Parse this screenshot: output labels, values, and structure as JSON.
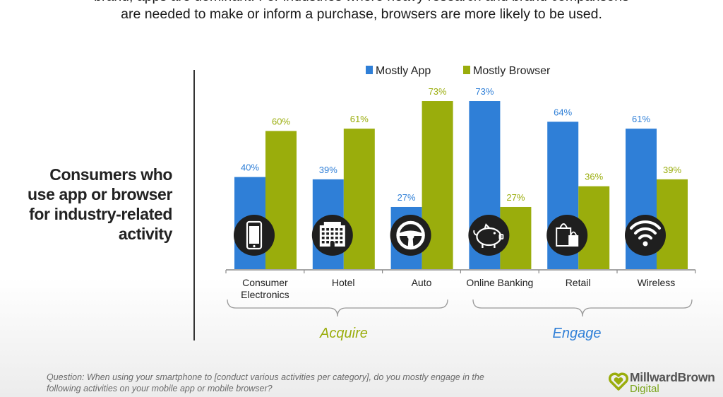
{
  "intro": {
    "line1": "brand, apps are dominant. For industries where heavy research and brand comparisons",
    "line2": "are needed to make or inform a purchase, browsers are more likely to be used."
  },
  "side_title": {
    "line1": "Consumers who",
    "line2": "use app or browser",
    "line3": "for industry-related",
    "line4": "activity"
  },
  "footnote": {
    "line1": "Question: When using your smartphone to [conduct various activities per category], do you mostly engage in the",
    "line2": "following activities on your mobile app or mobile browser?"
  },
  "logo": {
    "text1": "MillwardBrown",
    "text2": "Digital"
  },
  "colors": {
    "app": "#2f7fd7",
    "browser": "#9aad0c",
    "icon_bg": "#1f1f1f",
    "axis": "#8a8a8a",
    "acquire": "#9aad0c",
    "engage": "#2f7fd7"
  },
  "chart_data": {
    "type": "bar",
    "categories": [
      "Consumer Electronics",
      "Hotel",
      "Auto",
      "Online Banking",
      "Retail",
      "Wireless"
    ],
    "category_lines": [
      [
        "Consumer",
        "Electronics"
      ],
      [
        "Hotel"
      ],
      [
        "Auto"
      ],
      [
        "Online Banking"
      ],
      [
        "Retail"
      ],
      [
        "Wireless"
      ]
    ],
    "series": [
      {
        "name": "Mostly App",
        "values": [
          40,
          39,
          27,
          73,
          64,
          61
        ],
        "labels": [
          "40%",
          "39%",
          "27%",
          "73%",
          "64%",
          "61%"
        ]
      },
      {
        "name": "Mostly Browser",
        "values": [
          60,
          61,
          73,
          27,
          36,
          39
        ],
        "labels": [
          "60%",
          "61%",
          "73%",
          "27%",
          "36%",
          "39%"
        ]
      }
    ],
    "icons": [
      "smartphone-icon",
      "building-icon",
      "steering-wheel-icon",
      "piggy-bank-icon",
      "shopping-bags-icon",
      "wifi-icon"
    ],
    "groups": [
      {
        "label": "Acquire",
        "categories": [
          "Consumer Electronics",
          "Hotel",
          "Auto"
        ]
      },
      {
        "label": "Engage",
        "categories": [
          "Online Banking",
          "Retail",
          "Wireless"
        ]
      }
    ],
    "legend_position": "top",
    "ylim": [
      0,
      100
    ],
    "grid": false
  }
}
